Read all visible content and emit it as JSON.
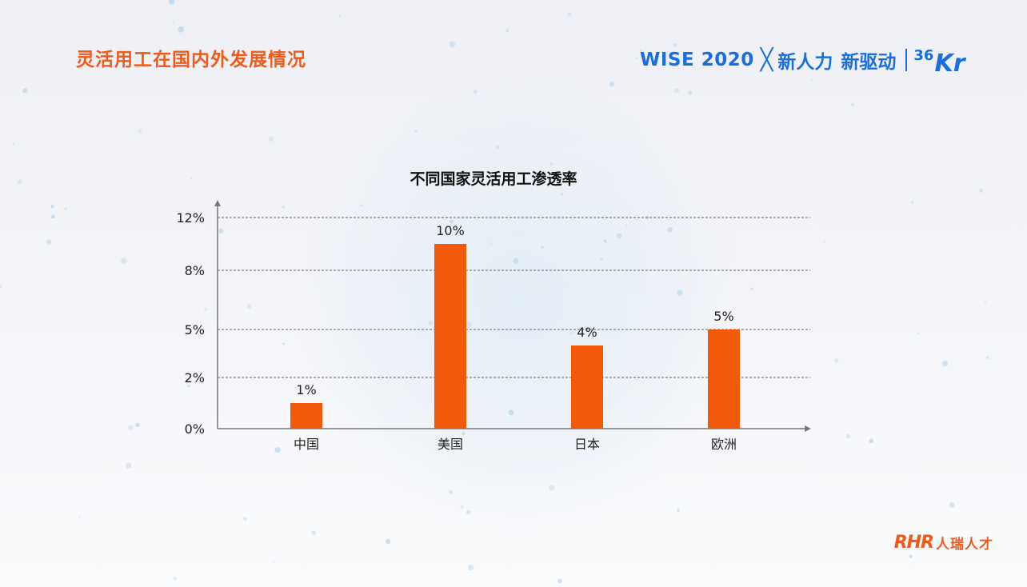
{
  "header": {
    "title": "灵活用工在国内外发展情况"
  },
  "brand": {
    "event": "WISE 2020",
    "cross": "╳",
    "slogan_1": "新人力",
    "slogan_2": "新驱动",
    "logo_36": "36",
    "logo_kr": "Kr"
  },
  "footer": {
    "logo_mark": "RHR",
    "logo_text": "人瑞人才"
  },
  "colors": {
    "accent": "#f05a1a",
    "bar": "#f25a0a",
    "brand_blue": "#1a6fe0"
  },
  "chart_data": {
    "type": "bar",
    "title": "不同国家灵活用工渗透率",
    "categories": [
      "中国",
      "美国",
      "日本",
      "欧洲"
    ],
    "values": [
      1,
      10,
      4,
      5
    ],
    "data_labels": [
      "1%",
      "10%",
      "4%",
      "5%"
    ],
    "y_ticks": [
      {
        "value": 0,
        "label": "0%"
      },
      {
        "value": 2,
        "label": "2%"
      },
      {
        "value": 5,
        "label": "5%"
      },
      {
        "value": 8,
        "label": "8%"
      },
      {
        "value": 12,
        "label": "12%"
      }
    ],
    "ylim": [
      0,
      12
    ],
    "grid": true,
    "xlabel": "",
    "ylabel": ""
  }
}
